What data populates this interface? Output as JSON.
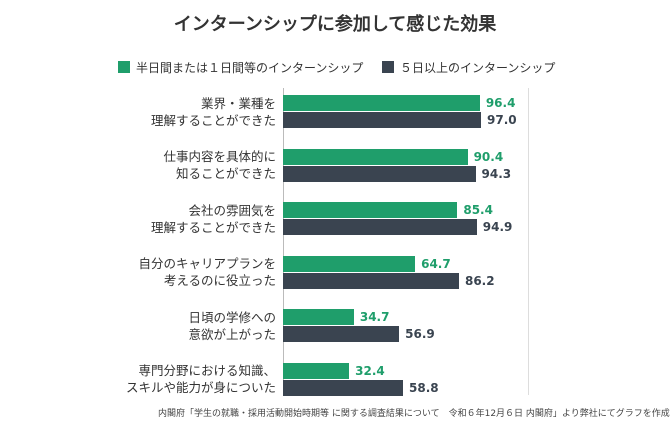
{
  "chart_data": {
    "type": "bar",
    "orientation": "horizontal",
    "title": "インターンシップに参加して感じた効果",
    "categories": [
      "業界・業種を\n理解することができた",
      "仕事内容を具体的に\n知ることができた",
      "会社の雰囲気を\n理解することができた",
      "自分のキャリアプランを\n考えるのに役立った",
      "日頃の学修への\n意欲が上がった",
      "専門分野における知識、\nスキルや能力が身についた"
    ],
    "series": [
      {
        "name": "半日間または１日間等のインターンシップ",
        "color": "#1f9e6b",
        "values": [
          96.4,
          90.4,
          85.4,
          64.7,
          34.7,
          32.4
        ],
        "value_labels": [
          "96.4",
          "90.4",
          "85.4",
          "64.7",
          "34.7",
          "32.4"
        ]
      },
      {
        "name": "５日以上のインターンシップ",
        "color": "#3a4450",
        "values": [
          97.0,
          94.3,
          94.9,
          86.2,
          56.9,
          58.8
        ],
        "value_labels": [
          "97.0",
          "94.3",
          "94.9",
          "86.2",
          "56.9",
          "58.8"
        ]
      }
    ],
    "xlim": [
      0,
      120
    ],
    "source": "内閣府「学生の就職・採用活動開始時期等 に関する調査結果について　令和６年12月６日 内閣府」より弊社にてグラフを作成"
  }
}
